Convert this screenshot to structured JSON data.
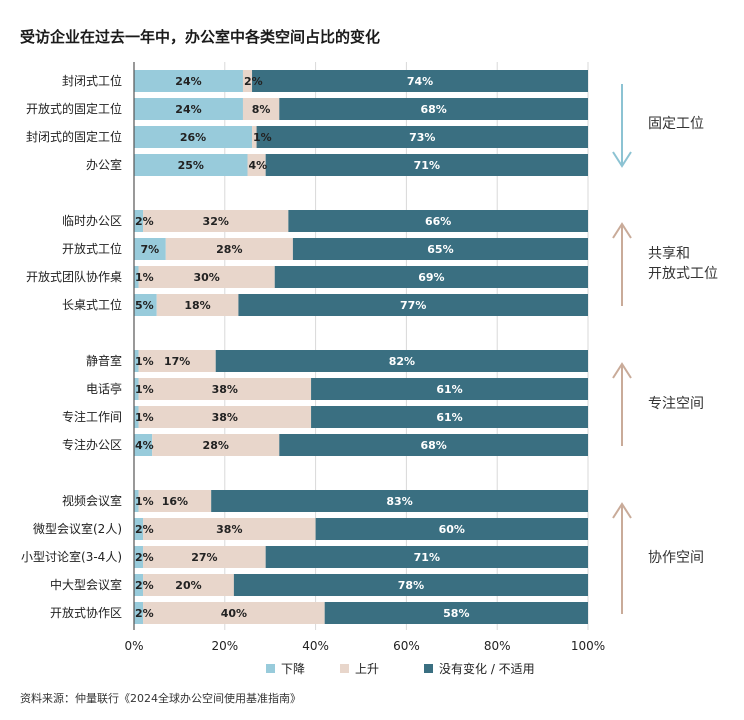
{
  "chart_data": {
    "type": "bar",
    "orientation": "horizontal",
    "stacked": true,
    "title": "受访企业在过去一年中，办公室中各类空间占比的变化",
    "xlim": [
      0,
      100
    ],
    "xticks": [
      "0%",
      "20%",
      "40%",
      "60%",
      "80%",
      "100%"
    ],
    "categories": [
      "封闭式工位",
      "开放式的固定工位",
      "封闭式的固定工位",
      "办公室",
      "临时办公区",
      "开放式工位",
      "开放式团队协作桌",
      "长桌式工位",
      "静音室",
      "电话亭",
      "专注工作间",
      "专注办公区",
      "视频会议室",
      "微型会议室(2人)",
      "小型讨论室(3-4人)",
      "中大型会议室",
      "开放式协作区"
    ],
    "series": [
      {
        "name": "下降",
        "color": "#98cbdb",
        "values": [
          24,
          24,
          26,
          25,
          2,
          7,
          1,
          5,
          1,
          1,
          1,
          4,
          1,
          2,
          2,
          2,
          2
        ],
        "labels": [
          "24%",
          "24%",
          "26%",
          "25%",
          "2%",
          "7%",
          "1%",
          "5%",
          "1%",
          "1%",
          "1%",
          "4%",
          "1%",
          "2%",
          "2%",
          "2%",
          "2%"
        ]
      },
      {
        "name": "上升",
        "color": "#e8d6cb",
        "values": [
          2,
          8,
          1,
          4,
          32,
          28,
          30,
          18,
          17,
          38,
          38,
          28,
          16,
          38,
          27,
          20,
          40
        ],
        "labels": [
          "2%",
          "8%",
          "1%",
          "4%",
          "32%",
          "28%",
          "30%",
          "18%",
          "17%",
          "38%",
          "38%",
          "28%",
          "16%",
          "38%",
          "27%",
          "20%",
          "40%"
        ]
      },
      {
        "name": "没有变化 / 不适用",
        "color": "#3a6f81",
        "values": [
          74,
          68,
          73,
          71,
          66,
          65,
          69,
          77,
          82,
          61,
          61,
          68,
          83,
          60,
          71,
          78,
          58
        ],
        "labels": [
          "74%",
          "68%",
          "73%",
          "71%",
          "66%",
          "65%",
          "69%",
          "77%",
          "82%",
          "61%",
          "61%",
          "68%",
          "83%",
          "60%",
          "71%",
          "78%",
          "58%"
        ]
      }
    ],
    "groups": [
      {
        "label_lines": [
          "固定工位"
        ],
        "direction": "down",
        "arrow_color": "#8cc3d3"
      },
      {
        "label_lines": [
          "共享和",
          "开放式工位"
        ],
        "direction": "up",
        "arrow_color": "#c9ab99"
      },
      {
        "label_lines": [
          "专注空间"
        ],
        "direction": "up",
        "arrow_color": "#c9ab99"
      },
      {
        "label_lines": [
          "协作空间"
        ],
        "direction": "up",
        "arrow_color": "#c9ab99"
      }
    ],
    "legend_position": "bottom-center"
  },
  "source": "资料来源：仲量联行《2024全球办公空间使用基准指南》"
}
